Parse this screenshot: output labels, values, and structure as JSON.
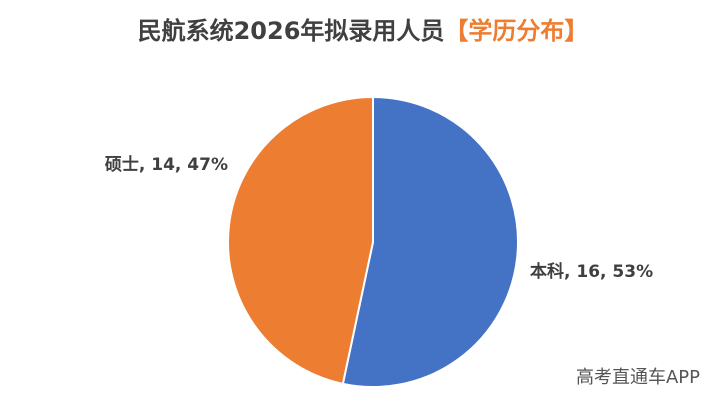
{
  "chart_data": {
    "type": "pie",
    "title": "民航系统2026年拟录用人员",
    "title_highlight": "【学历分布】",
    "categories": [
      "本科",
      "硕士"
    ],
    "values": [
      16,
      14
    ],
    "value_labels": [
      "本科, 16, 53%",
      "硕士, 14, 47%"
    ],
    "colors": [
      "#4472c4",
      "#ed7d31"
    ],
    "watermark": "高考直通车APP"
  }
}
